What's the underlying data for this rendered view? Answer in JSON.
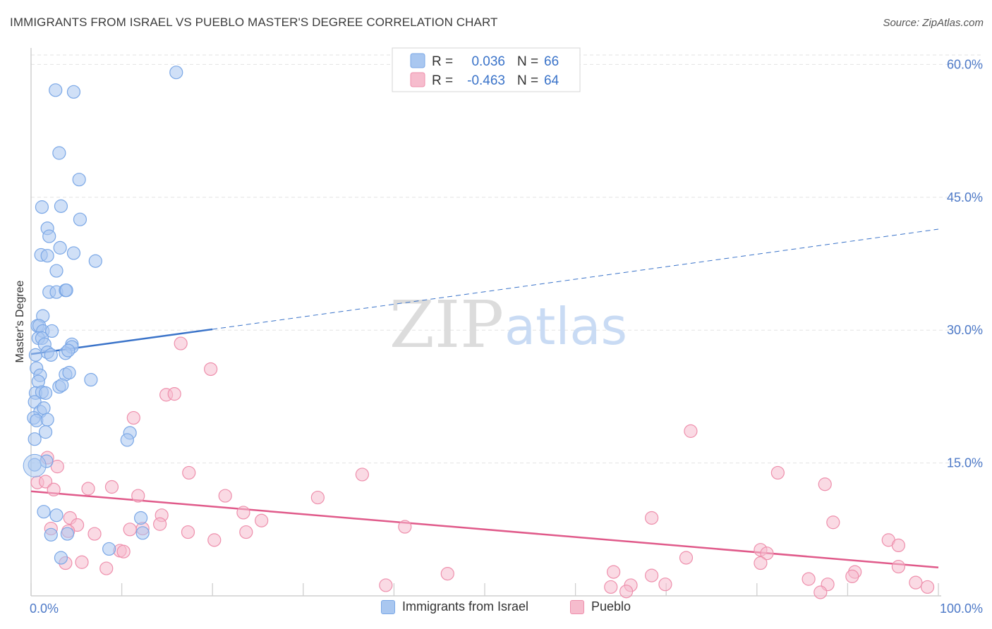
{
  "header": {
    "title": "IMMIGRANTS FROM ISRAEL VS PUEBLO MASTER'S DEGREE CORRELATION CHART",
    "source": "Source: ZipAtlas.com"
  },
  "watermark": {
    "zip": "ZIP",
    "atlas": "atlas"
  },
  "colors": {
    "blue": "#7aa7e6",
    "blue_fill": "#a9c7f0",
    "blue_line": "#3a73c9",
    "pink": "#ee8fac",
    "pink_fill": "#f6bccd",
    "pink_line": "#e05a8a",
    "tick_text": "#4d79c7",
    "grid": "#e3e3e3"
  },
  "legend": {
    "rows": [
      {
        "r_label": "R =",
        "r_value": "0.036",
        "n_label": "N =",
        "n_value": "66",
        "series": "blue"
      },
      {
        "r_label": "R =",
        "r_value": "-0.463",
        "n_label": "N =",
        "n_value": "64",
        "series": "pink"
      }
    ]
  },
  "bottom_legend": [
    {
      "label": "Immigrants from Israel",
      "series": "blue"
    },
    {
      "label": "Pueblo",
      "series": "pink"
    }
  ],
  "chart_data": {
    "type": "scatter",
    "ylabel": "Master's Degree",
    "xlim": [
      0,
      100
    ],
    "ylim": [
      0,
      62.5
    ],
    "x_tick_labels": [
      {
        "value": 0,
        "label": "0.0%"
      },
      {
        "value": 100,
        "label": "100.0%"
      }
    ],
    "y_tick_labels": [
      {
        "value": 15,
        "label": "15.0%"
      },
      {
        "value": 30,
        "label": "30.0%"
      },
      {
        "value": 45,
        "label": "45.0%"
      },
      {
        "value": 60,
        "label": "60.0%"
      }
    ],
    "x_minor_ticks": [
      0,
      10,
      20,
      30,
      40,
      50,
      60,
      70,
      80,
      90,
      100
    ],
    "grid": true,
    "series": [
      {
        "name": "Immigrants from Israel",
        "color": "blue",
        "trend": {
          "x": [
            0,
            20
          ],
          "y": [
            27.3,
            30.1
          ],
          "dashed_extension": {
            "x": [
              20,
              100
            ],
            "y": [
              30.1,
              41.4
            ]
          }
        },
        "points": [
          [
            16,
            59.1
          ],
          [
            2.7,
            57.1
          ],
          [
            4.7,
            56.9
          ],
          [
            3.1,
            50
          ],
          [
            5.3,
            47
          ],
          [
            1.2,
            43.9
          ],
          [
            3.3,
            44
          ],
          [
            5.4,
            42.5
          ],
          [
            1.8,
            41.5
          ],
          [
            2,
            40.6
          ],
          [
            3.2,
            39.3
          ],
          [
            1.1,
            38.5
          ],
          [
            1.8,
            38.4
          ],
          [
            4.7,
            38.7
          ],
          [
            7.1,
            37.8
          ],
          [
            2.8,
            36.7
          ],
          [
            2,
            34.3
          ],
          [
            2.8,
            34.3
          ],
          [
            3.8,
            34.5
          ],
          [
            3.9,
            34.5
          ],
          [
            1.3,
            31.6
          ],
          [
            0.7,
            30.5
          ],
          [
            0.9,
            30.5
          ],
          [
            1.3,
            29.9
          ],
          [
            2.3,
            29.9
          ],
          [
            0.8,
            29.1
          ],
          [
            1.2,
            29.1
          ],
          [
            1.5,
            28.4
          ],
          [
            4.5,
            28.4
          ],
          [
            4.5,
            28.1
          ],
          [
            0.5,
            27.2
          ],
          [
            1.8,
            27.5
          ],
          [
            2.2,
            27.2
          ],
          [
            3.8,
            27.4
          ],
          [
            4.1,
            27.7
          ],
          [
            0.6,
            25.7
          ],
          [
            1,
            24.9
          ],
          [
            3.8,
            25
          ],
          [
            4.2,
            25.2
          ],
          [
            6.6,
            24.4
          ],
          [
            0.8,
            24.2
          ],
          [
            3.1,
            23.6
          ],
          [
            3.4,
            23.8
          ],
          [
            0.5,
            22.9
          ],
          [
            1.2,
            23
          ],
          [
            1.6,
            22.9
          ],
          [
            0.4,
            21.9
          ],
          [
            1,
            20.8
          ],
          [
            1.4,
            21.2
          ],
          [
            0.3,
            20.1
          ],
          [
            0.6,
            19.8
          ],
          [
            1.8,
            19.9
          ],
          [
            1.6,
            18.5
          ],
          [
            10.9,
            18.4
          ],
          [
            10.6,
            17.6
          ],
          [
            0.4,
            17.7
          ],
          [
            0.4,
            14.8
          ],
          [
            1.7,
            15.2
          ],
          [
            1.4,
            9.5
          ],
          [
            2.8,
            9.1
          ],
          [
            12.1,
            8.8
          ],
          [
            2.2,
            6.9
          ],
          [
            4,
            7
          ],
          [
            12.3,
            7.1
          ],
          [
            8.6,
            5.3
          ],
          [
            3.3,
            4.3
          ]
        ]
      },
      {
        "name": "Pueblo",
        "color": "pink",
        "trend": {
          "x": [
            0,
            100
          ],
          "y": [
            11.8,
            3.2
          ]
        },
        "points": [
          [
            16.5,
            28.5
          ],
          [
            19.8,
            25.6
          ],
          [
            14.9,
            22.7
          ],
          [
            15.8,
            22.8
          ],
          [
            11.3,
            20.1
          ],
          [
            72.7,
            18.6
          ],
          [
            1.8,
            15.6
          ],
          [
            2.9,
            14.6
          ],
          [
            17.4,
            13.9
          ],
          [
            36.5,
            13.7
          ],
          [
            82.3,
            13.9
          ],
          [
            0.7,
            12.8
          ],
          [
            1.6,
            12.9
          ],
          [
            87.5,
            12.6
          ],
          [
            2.5,
            12
          ],
          [
            6.3,
            12.1
          ],
          [
            8.9,
            12.3
          ],
          [
            11.8,
            11.3
          ],
          [
            21.4,
            11.3
          ],
          [
            31.6,
            11.1
          ],
          [
            23.4,
            9.4
          ],
          [
            14.4,
            9.1
          ],
          [
            68.4,
            8.8
          ],
          [
            25.4,
            8.5
          ],
          [
            88.4,
            8.3
          ],
          [
            4.3,
            8.8
          ],
          [
            5.1,
            8
          ],
          [
            14.2,
            8.1
          ],
          [
            2.2,
            7.6
          ],
          [
            4.1,
            7.3
          ],
          [
            10.9,
            7.5
          ],
          [
            12.3,
            7.6
          ],
          [
            17.3,
            7.2
          ],
          [
            23.7,
            7.2
          ],
          [
            41.2,
            7.8
          ],
          [
            7,
            7
          ],
          [
            20.2,
            6.3
          ],
          [
            94.5,
            6.3
          ],
          [
            95.6,
            5.7
          ],
          [
            9.8,
            5.1
          ],
          [
            10.2,
            5
          ],
          [
            80.4,
            5.2
          ],
          [
            81.1,
            4.8
          ],
          [
            72.2,
            4.3
          ],
          [
            3.8,
            3.7
          ],
          [
            5.6,
            3.8
          ],
          [
            8.3,
            3.1
          ],
          [
            90.8,
            2.7
          ],
          [
            95.6,
            3.3
          ],
          [
            64.2,
            2.7
          ],
          [
            68.4,
            2.3
          ],
          [
            80.4,
            3.7
          ],
          [
            45.9,
            2.5
          ],
          [
            90.5,
            2.2
          ],
          [
            85.7,
            1.9
          ],
          [
            97.5,
            1.5
          ],
          [
            39.1,
            1.2
          ],
          [
            87.8,
            1.3
          ],
          [
            63.9,
            1
          ],
          [
            66.1,
            1.2
          ],
          [
            69.9,
            1.3
          ],
          [
            87,
            0.4
          ],
          [
            98.8,
            1
          ],
          [
            65.6,
            0.5
          ]
        ]
      }
    ]
  }
}
